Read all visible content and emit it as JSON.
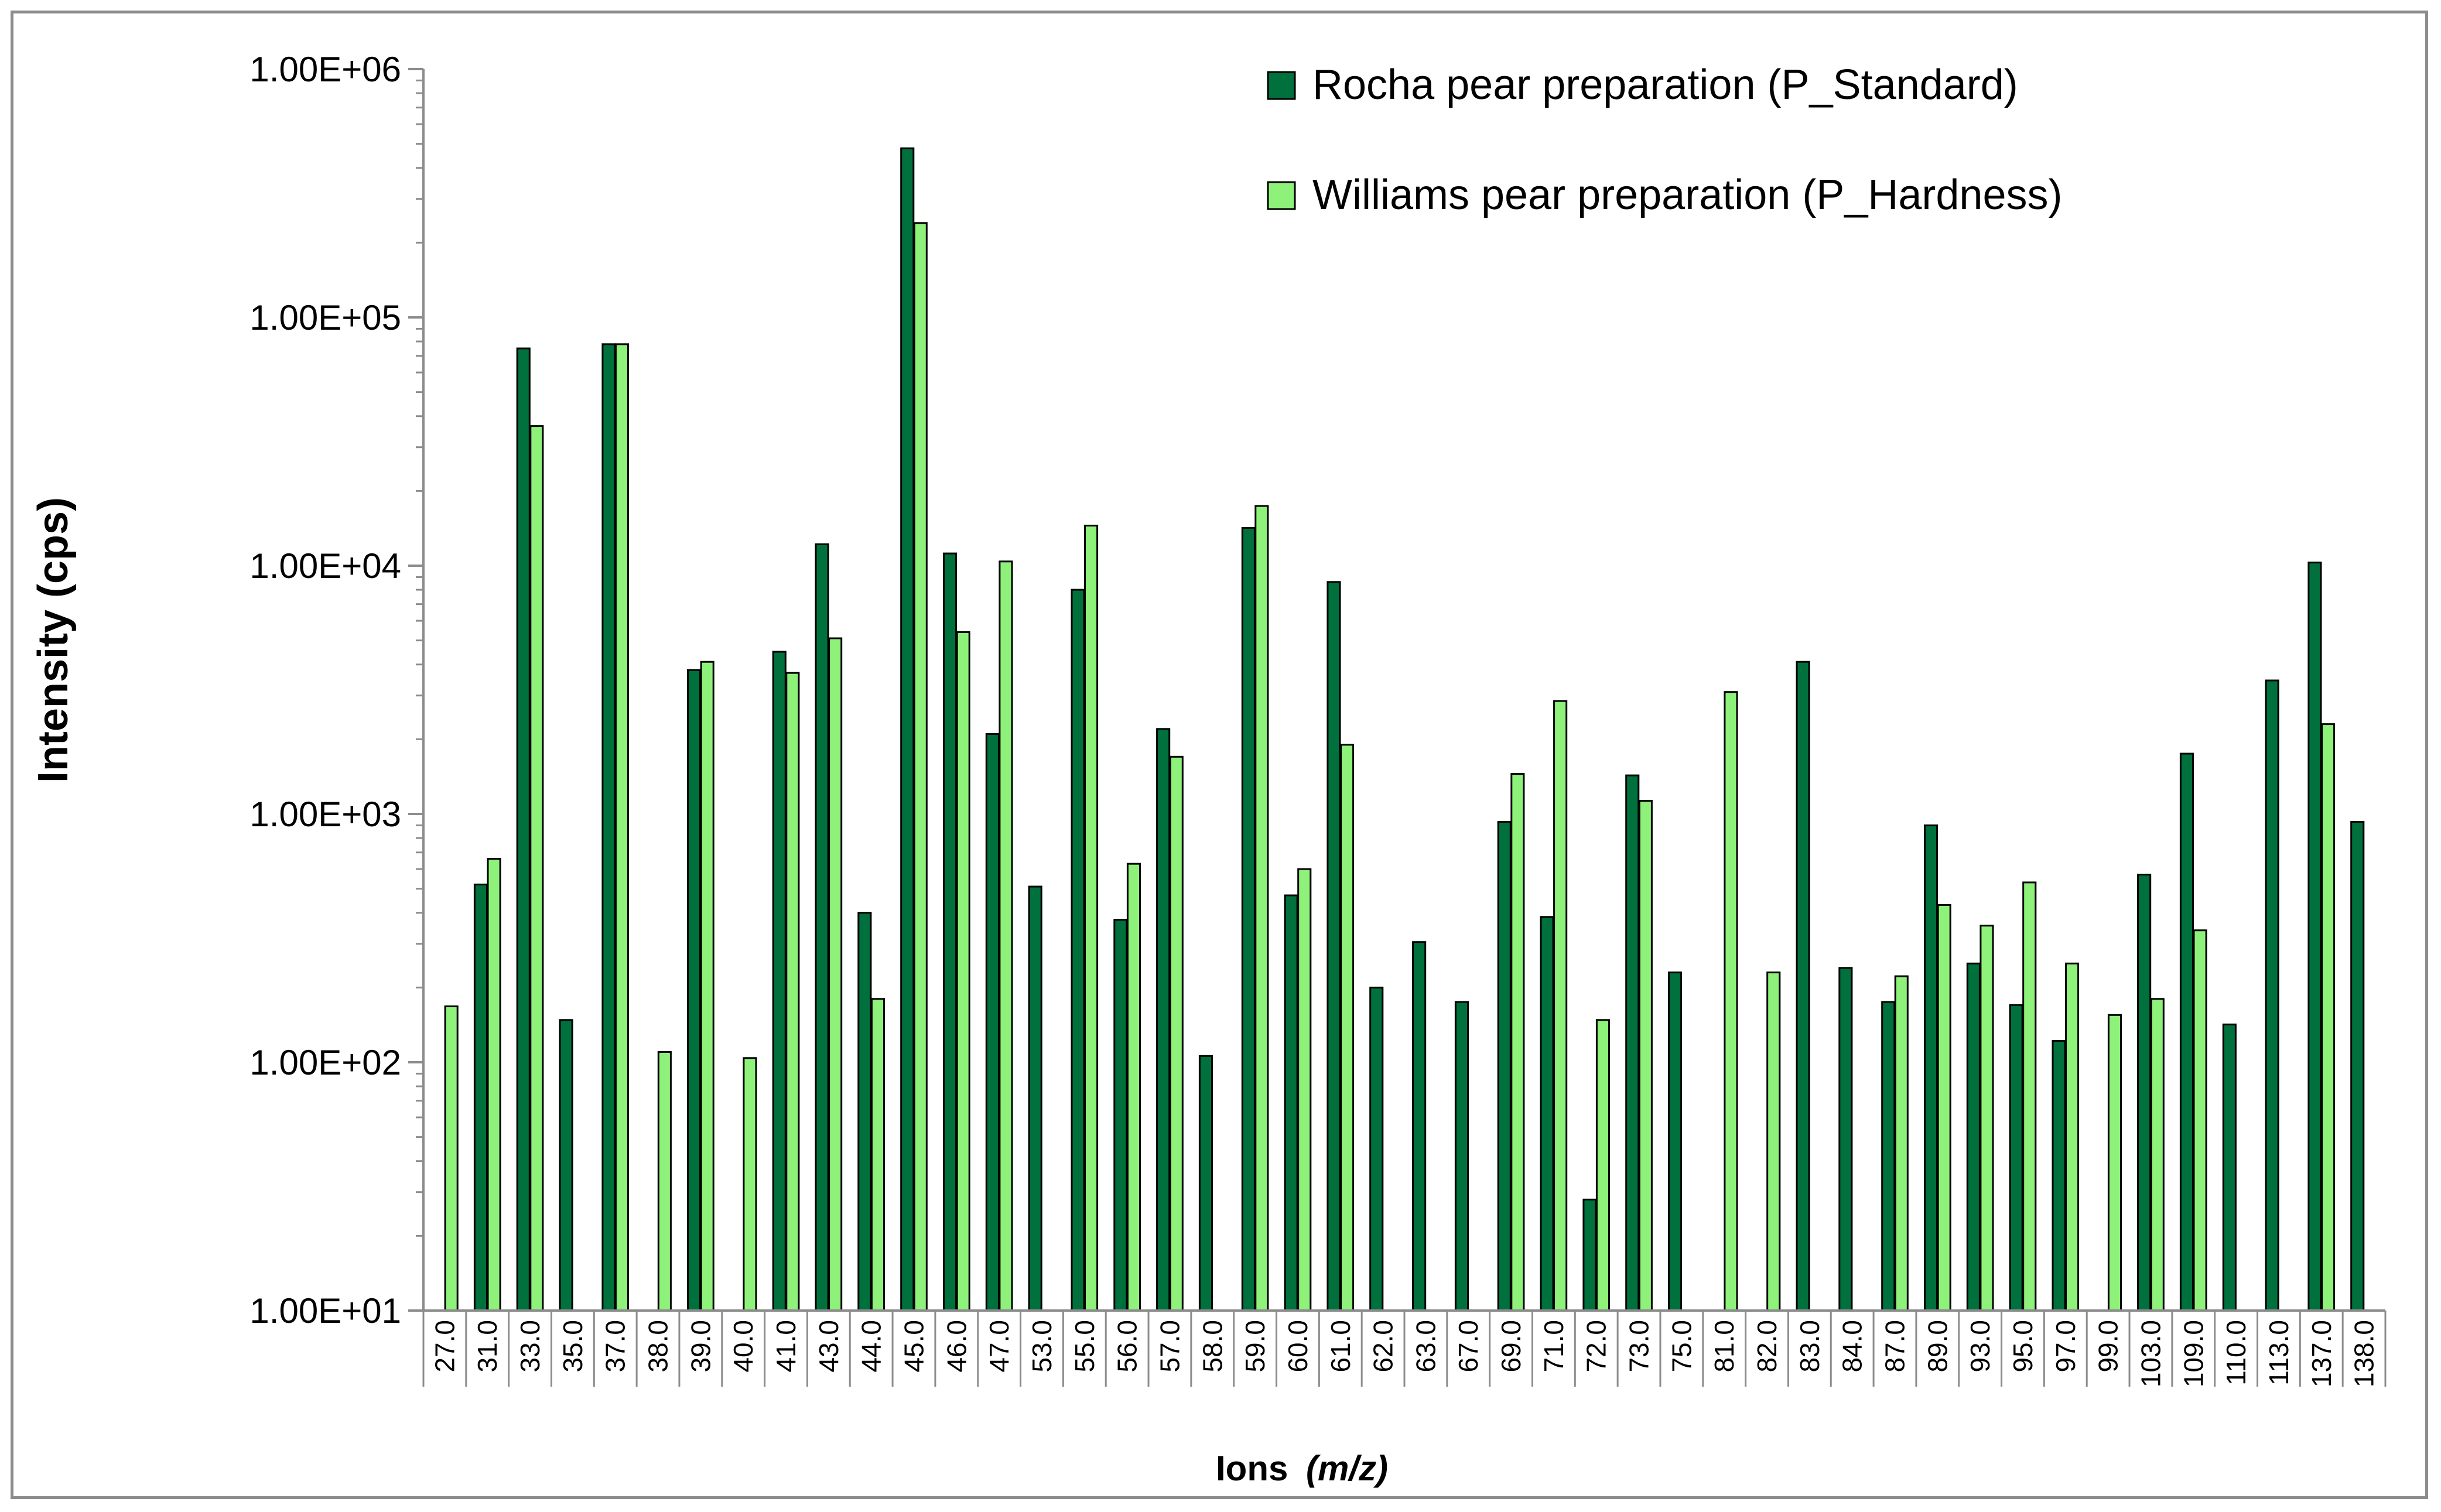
{
  "chart_data": {
    "type": "bar",
    "title": "",
    "xlabel": "Ions",
    "xlabel_unit": "(m/z)",
    "ylabel": "Intensity (cps)",
    "y_scale": "log",
    "ylim": [
      10,
      1000000
    ],
    "y_ticks": [
      "1.00E+01",
      "1.00E+02",
      "1.00E+03",
      "1.00E+04",
      "1.00E+05",
      "1.00E+06"
    ],
    "grid": false,
    "legend_position": "top-right",
    "categories": [
      "27.0",
      "31.0",
      "33.0",
      "35.0",
      "37.0",
      "38.0",
      "39.0",
      "40.0",
      "41.0",
      "43.0",
      "44.0",
      "45.0",
      "46.0",
      "47.0",
      "53.0",
      "55.0",
      "56.0",
      "57.0",
      "58.0",
      "59.0",
      "60.0",
      "61.0",
      "62.0",
      "63.0",
      "67.0",
      "69.0",
      "71.0",
      "72.0",
      "73.0",
      "75.0",
      "81.0",
      "82.0",
      "83.0",
      "84.0",
      "87.0",
      "89.0",
      "93.0",
      "95.0",
      "97.0",
      "99.0",
      "103.0",
      "109.0",
      "110.0",
      "113.0",
      "137.0",
      "138.0"
    ],
    "series": [
      {
        "name": "Rocha pear preparation (P_Standard)",
        "color": "#00703c",
        "values": [
          null,
          520,
          75000,
          148,
          78000,
          null,
          3800,
          null,
          4500,
          12200,
          400,
          480000,
          11200,
          2100,
          510,
          8000,
          375,
          2200,
          106,
          14200,
          470,
          8600,
          200,
          305,
          175,
          930,
          385,
          28,
          1430,
          230,
          null,
          null,
          4100,
          240,
          175,
          900,
          250,
          170,
          122,
          null,
          570,
          1750,
          142,
          3450,
          10300,
          930
        ]
      },
      {
        "name": "Williams pear preparation (P_Hardness)",
        "color": "#8ef27a",
        "values": [
          168,
          660,
          36500,
          null,
          78000,
          110,
          4100,
          104,
          3700,
          5100,
          180,
          240000,
          5400,
          10400,
          null,
          14500,
          630,
          1700,
          null,
          17400,
          600,
          1900,
          null,
          null,
          null,
          1450,
          2850,
          148,
          1130,
          null,
          3100,
          230,
          null,
          null,
          222,
          430,
          355,
          530,
          250,
          155,
          180,
          340,
          null,
          null,
          2300,
          null
        ]
      }
    ]
  }
}
